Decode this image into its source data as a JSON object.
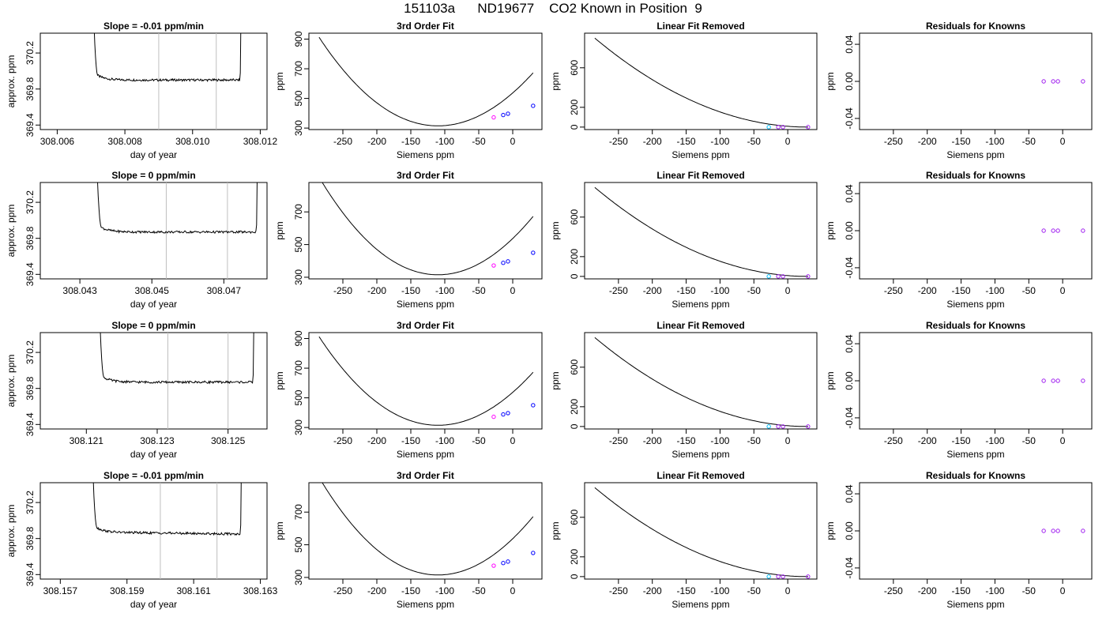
{
  "title": "151103a      ND19677    CO2 Known in Position  9",
  "point_colors": {
    "cyan": "#00bfff",
    "blue": "#0000ff",
    "purple": "#a020f0",
    "magenta": "#ff00ff",
    "red": "#ff0000"
  },
  "chart_data": [
    {
      "type": "line",
      "row": 0,
      "panel": "time-series",
      "title": "Slope =  -0.01  ppm/min",
      "xlabel": "day of year",
      "ylabel": "approx. ppm",
      "xlim": [
        308.0055,
        308.0122
      ],
      "ylim": [
        369.35,
        370.42
      ],
      "xticks": [
        "308.006",
        "308.008",
        "308.010",
        "308.012"
      ],
      "yticks": [
        "369.4",
        "369.8",
        "370.2"
      ],
      "vlines": [
        308.009,
        308.0107
      ],
      "plateau_start": 308.0072,
      "plateau_end": 308.0114,
      "plateau_level": 369.9,
      "drift": 0.0,
      "rise_end": 308.0071
    },
    {
      "type": "line",
      "row": 0,
      "panel": "fit",
      "title": "3rd Order Fit",
      "xlabel": "Siemens ppm",
      "ylabel": "ppm",
      "xlim": [
        -300,
        43
      ],
      "ylim": [
        290,
        940
      ],
      "xticks": [
        "-250",
        "-200",
        "-150",
        "-100",
        "-50",
        "0"
      ],
      "yticks": [
        "300",
        "500",
        "700",
        "900"
      ],
      "points": [
        {
          "x": -28,
          "y": 372,
          "c": "magenta"
        },
        {
          "x": -14,
          "y": 388,
          "c": "blue"
        },
        {
          "x": -7,
          "y": 397,
          "c": "blue"
        },
        {
          "x": 30,
          "y": 450,
          "c": "blue"
        }
      ]
    },
    {
      "type": "line",
      "row": 0,
      "panel": "linear-removed",
      "title": "Linear Fit Removed",
      "xlabel": "Siemens ppm",
      "ylabel": "ppm",
      "xlim": [
        -300,
        43
      ],
      "ylim": [
        -25,
        950
      ],
      "xticks": [
        "-250",
        "-200",
        "-150",
        "-100",
        "-50",
        "0"
      ],
      "yticks": [
        "0",
        "200",
        "600"
      ],
      "points": [
        {
          "x": -28,
          "y": 0,
          "c": "cyan"
        },
        {
          "x": -14,
          "y": 0,
          "c": "purple"
        },
        {
          "x": -7,
          "y": 0,
          "c": "purple"
        },
        {
          "x": 30,
          "y": 0,
          "c": "purple"
        }
      ]
    },
    {
      "type": "scatter",
      "row": 0,
      "panel": "residuals",
      "title": "Residuals for Knowns",
      "xlabel": "Siemens ppm",
      "ylabel": "ppm",
      "xlim": [
        -300,
        43
      ],
      "ylim": [
        -0.052,
        0.052
      ],
      "xticks": [
        "-250",
        "-200",
        "-150",
        "-100",
        "-50",
        "0"
      ],
      "yticks": [
        "-0.04",
        "0.00",
        "0.04"
      ],
      "points": [
        {
          "x": -28,
          "y": 0,
          "c": "purple"
        },
        {
          "x": -14,
          "y": 0,
          "c": "purple"
        },
        {
          "x": -7,
          "y": 0,
          "c": "purple"
        },
        {
          "x": 30,
          "y": 0,
          "c": "purple"
        }
      ]
    },
    {
      "type": "line",
      "row": 1,
      "panel": "time-series",
      "title": "Slope =  0  ppm/min",
      "xlabel": "day of year",
      "ylabel": "approx. ppm",
      "xlim": [
        308.0419,
        308.0482
      ],
      "ylim": [
        369.35,
        370.42
      ],
      "xticks": [
        "308.043",
        "308.045",
        "308.047"
      ],
      "yticks": [
        "369.4",
        "369.8",
        "370.2"
      ],
      "vlines": [
        308.0454,
        308.0471
      ],
      "plateau_start": 308.0436,
      "plateau_end": 308.0479,
      "plateau_level": 369.87,
      "drift": 0.0,
      "rise_end": 308.0437
    },
    {
      "type": "line",
      "row": 1,
      "panel": "fit",
      "title": "3rd Order Fit",
      "xlabel": "Siemens ppm",
      "ylabel": "ppm",
      "xlim": [
        -300,
        43
      ],
      "ylim": [
        290,
        880
      ],
      "xticks": [
        "-250",
        "-200",
        "-150",
        "-100",
        "-50",
        "0"
      ],
      "yticks": [
        "300",
        "500",
        "700"
      ],
      "points": [
        {
          "x": -28,
          "y": 372,
          "c": "magenta"
        },
        {
          "x": -14,
          "y": 388,
          "c": "blue"
        },
        {
          "x": -7,
          "y": 397,
          "c": "blue"
        },
        {
          "x": 30,
          "y": 450,
          "c": "blue"
        }
      ]
    },
    {
      "type": "line",
      "row": 1,
      "panel": "linear-removed",
      "title": "Linear Fit Removed",
      "xlabel": "Siemens ppm",
      "ylabel": "ppm",
      "xlim": [
        -300,
        43
      ],
      "ylim": [
        -25,
        950
      ],
      "xticks": [
        "-250",
        "-200",
        "-150",
        "-100",
        "-50",
        "0"
      ],
      "yticks": [
        "0",
        "200",
        "600"
      ],
      "points": [
        {
          "x": -28,
          "y": 0,
          "c": "cyan"
        },
        {
          "x": -14,
          "y": 0,
          "c": "purple"
        },
        {
          "x": -7,
          "y": 0,
          "c": "purple"
        },
        {
          "x": 30,
          "y": 0,
          "c": "purple"
        }
      ]
    },
    {
      "type": "scatter",
      "row": 1,
      "panel": "residuals",
      "title": "Residuals for Knowns",
      "xlabel": "Siemens ppm",
      "ylabel": "ppm",
      "xlim": [
        -300,
        43
      ],
      "ylim": [
        -0.052,
        0.052
      ],
      "xticks": [
        "-250",
        "-200",
        "-150",
        "-100",
        "-50",
        "0"
      ],
      "yticks": [
        "-0.04",
        "0.00",
        "0.04"
      ],
      "points": [
        {
          "x": -28,
          "y": 0,
          "c": "purple"
        },
        {
          "x": -14,
          "y": 0,
          "c": "purple"
        },
        {
          "x": -7,
          "y": 0,
          "c": "purple"
        },
        {
          "x": 30,
          "y": 0,
          "c": "purple"
        }
      ]
    },
    {
      "type": "line",
      "row": 2,
      "panel": "time-series",
      "title": "Slope =  0  ppm/min",
      "xlabel": "day of year",
      "ylabel": "approx. ppm",
      "xlim": [
        308.1197,
        308.1261
      ],
      "ylim": [
        369.35,
        370.42
      ],
      "xticks": [
        "308.121",
        "308.123",
        "308.125"
      ],
      "yticks": [
        "369.4",
        "369.8",
        "370.2"
      ],
      "vlines": [
        308.1233,
        308.125
      ],
      "plateau_start": 308.1215,
      "plateau_end": 308.1257,
      "plateau_level": 369.87,
      "drift": 0.0,
      "rise_end": 308.1214
    },
    {
      "type": "line",
      "row": 2,
      "panel": "fit",
      "title": "3rd Order Fit",
      "xlabel": "Siemens ppm",
      "ylabel": "ppm",
      "xlim": [
        -300,
        43
      ],
      "ylim": [
        290,
        940
      ],
      "xticks": [
        "-250",
        "-200",
        "-150",
        "-100",
        "-50",
        "0"
      ],
      "yticks": [
        "300",
        "500",
        "700",
        "900"
      ],
      "points": [
        {
          "x": -28,
          "y": 372,
          "c": "magenta"
        },
        {
          "x": -14,
          "y": 388,
          "c": "blue"
        },
        {
          "x": -7,
          "y": 397,
          "c": "blue"
        },
        {
          "x": 30,
          "y": 450,
          "c": "blue"
        }
      ]
    },
    {
      "type": "line",
      "row": 2,
      "panel": "linear-removed",
      "title": "Linear Fit Removed",
      "xlabel": "Siemens ppm",
      "ylabel": "ppm",
      "xlim": [
        -300,
        43
      ],
      "ylim": [
        -25,
        950
      ],
      "xticks": [
        "-250",
        "-200",
        "-150",
        "-100",
        "-50",
        "0"
      ],
      "yticks": [
        "0",
        "200",
        "600"
      ],
      "points": [
        {
          "x": -28,
          "y": 0,
          "c": "cyan"
        },
        {
          "x": -14,
          "y": 0,
          "c": "purple"
        },
        {
          "x": -7,
          "y": 0,
          "c": "purple"
        },
        {
          "x": 30,
          "y": 0,
          "c": "purple"
        }
      ]
    },
    {
      "type": "scatter",
      "row": 2,
      "panel": "residuals",
      "title": "Residuals for Knowns",
      "xlabel": "Siemens ppm",
      "ylabel": "ppm",
      "xlim": [
        -300,
        43
      ],
      "ylim": [
        -0.052,
        0.052
      ],
      "xticks": [
        "-250",
        "-200",
        "-150",
        "-100",
        "-50",
        "0"
      ],
      "yticks": [
        "-0.04",
        "0.00",
        "0.04"
      ],
      "points": [
        {
          "x": -28,
          "y": 0,
          "c": "purple"
        },
        {
          "x": -14,
          "y": 0,
          "c": "purple"
        },
        {
          "x": -7,
          "y": 0,
          "c": "purple"
        },
        {
          "x": 30,
          "y": 0,
          "c": "purple"
        }
      ]
    },
    {
      "type": "line",
      "row": 3,
      "panel": "time-series",
      "title": "Slope =  -0.01  ppm/min",
      "xlabel": "day of year",
      "ylabel": "approx. ppm",
      "xlim": [
        308.1564,
        308.1632
      ],
      "ylim": [
        369.35,
        370.42
      ],
      "xticks": [
        "308.157",
        "308.159",
        "308.161",
        "308.163"
      ],
      "yticks": [
        "369.4",
        "369.8",
        "370.2"
      ],
      "vlines": [
        308.16,
        308.1617
      ],
      "plateau_start": 308.1581,
      "plateau_end": 308.1624,
      "plateau_level": 369.87,
      "drift": -0.02,
      "rise_end": 308.158
    },
    {
      "type": "line",
      "row": 3,
      "panel": "fit",
      "title": "3rd Order Fit",
      "xlabel": "Siemens ppm",
      "ylabel": "ppm",
      "xlim": [
        -300,
        43
      ],
      "ylim": [
        290,
        880
      ],
      "xticks": [
        "-250",
        "-200",
        "-150",
        "-100",
        "-50",
        "0"
      ],
      "yticks": [
        "300",
        "500",
        "700"
      ],
      "points": [
        {
          "x": -28,
          "y": 372,
          "c": "magenta"
        },
        {
          "x": -14,
          "y": 388,
          "c": "blue"
        },
        {
          "x": -7,
          "y": 397,
          "c": "blue"
        },
        {
          "x": 30,
          "y": 450,
          "c": "blue"
        }
      ]
    },
    {
      "type": "line",
      "row": 3,
      "panel": "linear-removed",
      "title": "Linear Fit Removed",
      "xlabel": "Siemens ppm",
      "ylabel": "ppm",
      "xlim": [
        -300,
        43
      ],
      "ylim": [
        -25,
        950
      ],
      "xticks": [
        "-250",
        "-200",
        "-150",
        "-100",
        "-50",
        "0"
      ],
      "yticks": [
        "0",
        "200",
        "600"
      ],
      "points": [
        {
          "x": -28,
          "y": 0,
          "c": "cyan"
        },
        {
          "x": -14,
          "y": 0,
          "c": "purple"
        },
        {
          "x": -7,
          "y": 0,
          "c": "purple"
        },
        {
          "x": 30,
          "y": 0,
          "c": "purple"
        }
      ]
    },
    {
      "type": "scatter",
      "row": 3,
      "panel": "residuals",
      "title": "Residuals for Knowns",
      "xlabel": "Siemens ppm",
      "ylabel": "ppm",
      "xlim": [
        -300,
        43
      ],
      "ylim": [
        -0.052,
        0.052
      ],
      "xticks": [
        "-250",
        "-200",
        "-150",
        "-100",
        "-50",
        "0"
      ],
      "yticks": [
        "-0.04",
        "0.00",
        "0.04"
      ],
      "points": [
        {
          "x": -28,
          "y": 0,
          "c": "purple"
        },
        {
          "x": -14,
          "y": 0,
          "c": "purple"
        },
        {
          "x": -7,
          "y": 0,
          "c": "purple"
        },
        {
          "x": 30,
          "y": 0,
          "c": "purple"
        }
      ]
    }
  ]
}
